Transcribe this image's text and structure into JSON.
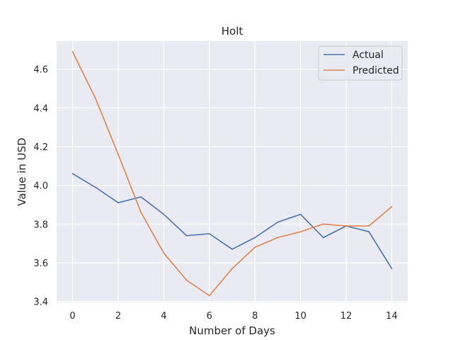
{
  "chart_data": {
    "type": "line",
    "title": "Holt",
    "xlabel": "Number of Days",
    "ylabel": "Value in USD",
    "xlim": [
      -0.7,
      14.7
    ],
    "ylim": [
      3.395,
      4.745
    ],
    "xticks": [
      0,
      2,
      4,
      6,
      8,
      10,
      12,
      14
    ],
    "yticks": [
      3.4,
      3.6,
      3.8,
      4.0,
      4.2,
      4.4,
      4.6
    ],
    "grid": true,
    "legend_position": "top-right",
    "x": [
      0,
      1,
      2,
      3,
      4,
      5,
      6,
      7,
      8,
      9,
      10,
      11,
      12,
      13,
      14
    ],
    "series": [
      {
        "name": "Actual",
        "color": "#4c72b0",
        "values": [
          4.06,
          3.99,
          3.91,
          3.94,
          3.85,
          3.74,
          3.75,
          3.67,
          3.73,
          3.81,
          3.85,
          3.73,
          3.79,
          3.76,
          3.57
        ]
      },
      {
        "name": "Predicted",
        "color": "#dd8452",
        "values": [
          4.69,
          4.45,
          4.16,
          3.86,
          3.65,
          3.51,
          3.43,
          3.57,
          3.68,
          3.73,
          3.76,
          3.8,
          3.79,
          3.79,
          3.89
        ]
      }
    ]
  },
  "style": {
    "plot_background": "#eaeaf2",
    "grid_color": "#ffffff",
    "text_color": "#262626"
  }
}
